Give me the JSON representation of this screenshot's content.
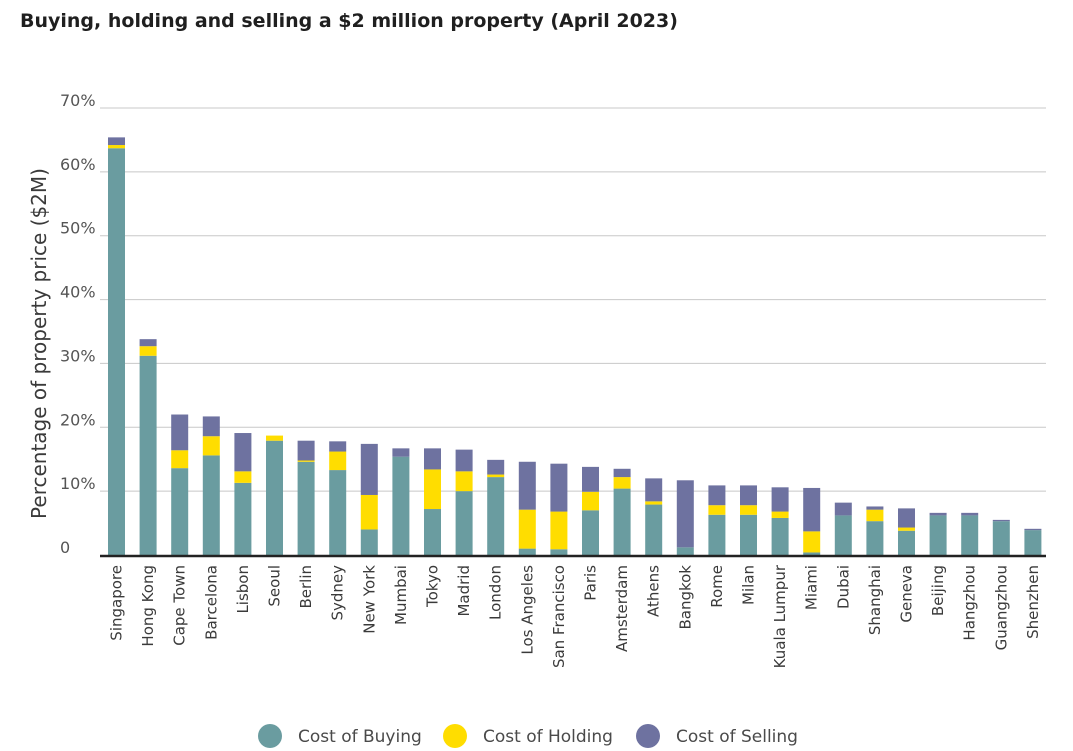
{
  "chart_data": {
    "type": "bar",
    "stacked": true,
    "title": "Buying, holding and selling a $2 million property (April 2023)",
    "ylabel": "Percentage of property price ($2M)",
    "xlabel": "",
    "ylim": [
      0,
      70
    ],
    "yticks": [
      {
        "value": 0,
        "label": "0"
      },
      {
        "value": 10,
        "label": "10%"
      },
      {
        "value": 20,
        "label": "20%"
      },
      {
        "value": 30,
        "label": "30%"
      },
      {
        "value": 40,
        "label": "40%"
      },
      {
        "value": 50,
        "label": "50%"
      },
      {
        "value": 60,
        "label": "60%"
      },
      {
        "value": 70,
        "label": "70%"
      }
    ],
    "grid": true,
    "legend_position": "bottom-center",
    "categories": [
      "Singapore",
      "Hong Kong",
      "Cape Town",
      "Barcelona",
      "Lisbon",
      "Seoul",
      "Berlin",
      "Sydney",
      "New York",
      "Mumbai",
      "Tokyo",
      "Madrid",
      "London",
      "Los Angeles",
      "San Francisco",
      "Paris",
      "Amsterdam",
      "Athens",
      "Bangkok",
      "Rome",
      "Milan",
      "Kuala Lumpur",
      "Miami",
      "Dubai",
      "Shanghai",
      "Geneva",
      "Beijing",
      "Hangzhou",
      "Guangzhou",
      "Shenzhen"
    ],
    "series": [
      {
        "name": "Cost of Buying",
        "color": "#6a9ca0",
        "values": [
          63.7,
          31.2,
          13.6,
          15.6,
          11.3,
          17.9,
          14.6,
          13.3,
          4.0,
          15.4,
          7.2,
          10.0,
          12.2,
          1.0,
          0.9,
          7.0,
          10.4,
          7.9,
          1.2,
          6.3,
          6.3,
          5.8,
          0.4,
          6.2,
          5.3,
          3.8,
          6.2,
          6.2,
          5.3,
          3.9
        ]
      },
      {
        "name": "Cost of Holding",
        "color": "#ffdd00",
        "values": [
          0.5,
          1.5,
          2.8,
          3.0,
          1.8,
          0.8,
          0.2,
          2.9,
          5.4,
          0,
          6.2,
          3.1,
          0.4,
          6.1,
          5.9,
          2.9,
          1.8,
          0.5,
          0,
          1.5,
          1.5,
          1.0,
          3.3,
          0,
          1.8,
          0.5,
          0,
          0,
          0,
          0
        ]
      },
      {
        "name": "Cost of Selling",
        "color": "#6e72a0",
        "values": [
          1.2,
          1.1,
          5.6,
          3.1,
          6.0,
          0,
          3.1,
          1.6,
          8.0,
          1.3,
          3.3,
          3.4,
          2.3,
          7.5,
          7.5,
          3.9,
          1.3,
          3.6,
          10.5,
          3.1,
          3.1,
          3.8,
          6.8,
          2.0,
          0.5,
          3.0,
          0.4,
          0.4,
          0.2,
          0.2
        ]
      }
    ]
  }
}
